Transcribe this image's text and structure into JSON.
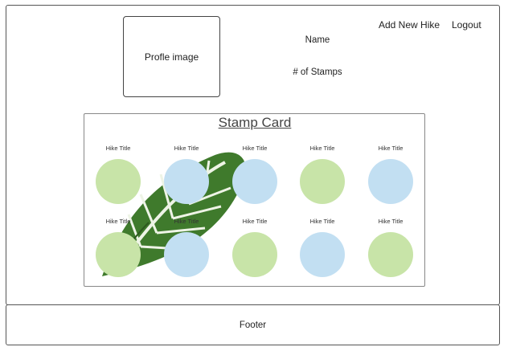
{
  "header": {
    "profile_image_label": "Profle image",
    "name_label": "Name",
    "stamps_label": "# of Stamps",
    "nav": {
      "add_hike": "Add New Hike",
      "logout": "Logout"
    }
  },
  "stamp_card": {
    "title": "Stamp Card",
    "colors": {
      "green": "#c8e4a8",
      "blue": "#c2dff2"
    },
    "rows": [
      {
        "hikes": [
          {
            "title": "Hike Title",
            "color": "green"
          },
          {
            "title": "Hike Title",
            "color": "blue"
          },
          {
            "title": "Hike Title",
            "color": "blue"
          },
          {
            "title": "Hike Title",
            "color": "green"
          },
          {
            "title": "Hike Title",
            "color": "blue"
          }
        ]
      },
      {
        "hikes": [
          {
            "title": "Hike Title",
            "color": "green"
          },
          {
            "title": "Hike Title",
            "color": "blue"
          },
          {
            "title": "Hike Title",
            "color": "green"
          },
          {
            "title": "Hike Title",
            "color": "blue"
          },
          {
            "title": "Hike Title",
            "color": "green"
          }
        ]
      }
    ]
  },
  "footer": {
    "label": "Footer"
  }
}
